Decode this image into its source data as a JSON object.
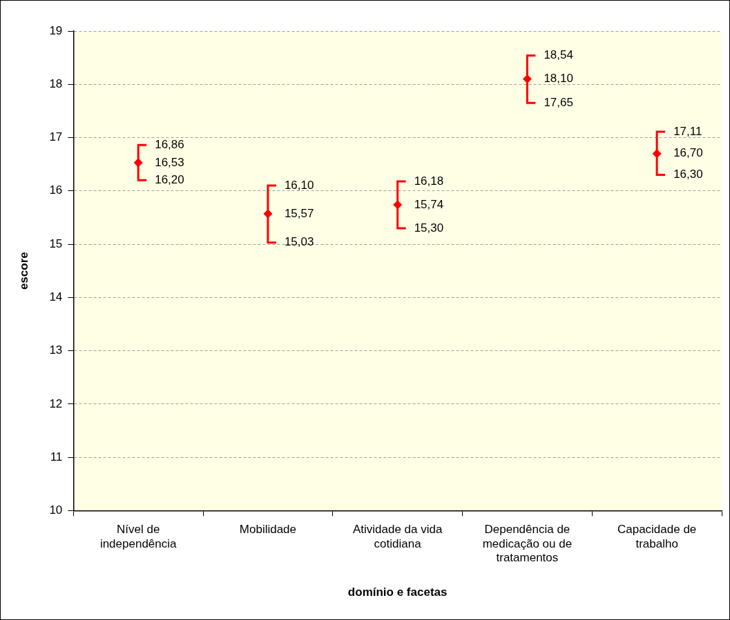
{
  "chart_data": {
    "type": "scatter",
    "xlabel": "domínio e facetas",
    "ylabel": "escore",
    "categories": [
      "Nível de independência",
      "Mobilidade",
      "Atividade da vida cotidiana",
      "Dependência de medicação ou de tratamentos",
      "Capacidade de trabalho"
    ],
    "series": [
      {
        "color": "#ff0000",
        "values": [
          16.53,
          15.57,
          15.74,
          18.1,
          16.7
        ],
        "value_labels": [
          "16,53",
          "15,57",
          "15,74",
          "18,10",
          "16,70"
        ],
        "errors": [
          [
            16.2,
            16.86
          ],
          [
            15.03,
            16.1
          ],
          [
            15.3,
            16.18
          ],
          [
            17.65,
            18.54
          ],
          [
            16.3,
            17.11
          ]
        ]
      }
    ],
    "annotations": [
      {
        "text": "16,86",
        "x": "Nível de independência",
        "y": 16.86
      },
      {
        "text": "16,20",
        "x": "Nível de independência",
        "y": 16.2
      },
      {
        "text": "16,10",
        "x": "Mobilidade",
        "y": 16.1
      },
      {
        "text": "15,03",
        "x": "Mobilidade",
        "y": 15.03
      },
      {
        "text": "16,18",
        "x": "Atividade da vida cotidiana",
        "y": 16.18
      },
      {
        "text": "15,30",
        "x": "Atividade da vida cotidiana",
        "y": 15.3
      },
      {
        "text": "18,54",
        "x": "Dependência de medicação ou de tratamentos",
        "y": 18.54
      },
      {
        "text": "17,65",
        "x": "Dependência de medicação ou de tratamentos",
        "y": 17.65
      },
      {
        "text": "17,11",
        "x": "Capacidade de trabalho",
        "y": 17.11
      },
      {
        "text": "16,30",
        "x": "Capacidade de trabalho",
        "y": 16.3
      }
    ],
    "ylim": [
      10,
      19
    ],
    "yticks": [
      10,
      11,
      12,
      13,
      14,
      15,
      16,
      17,
      18,
      19
    ],
    "grid": "y",
    "marker": "diamond",
    "legend": false
  }
}
